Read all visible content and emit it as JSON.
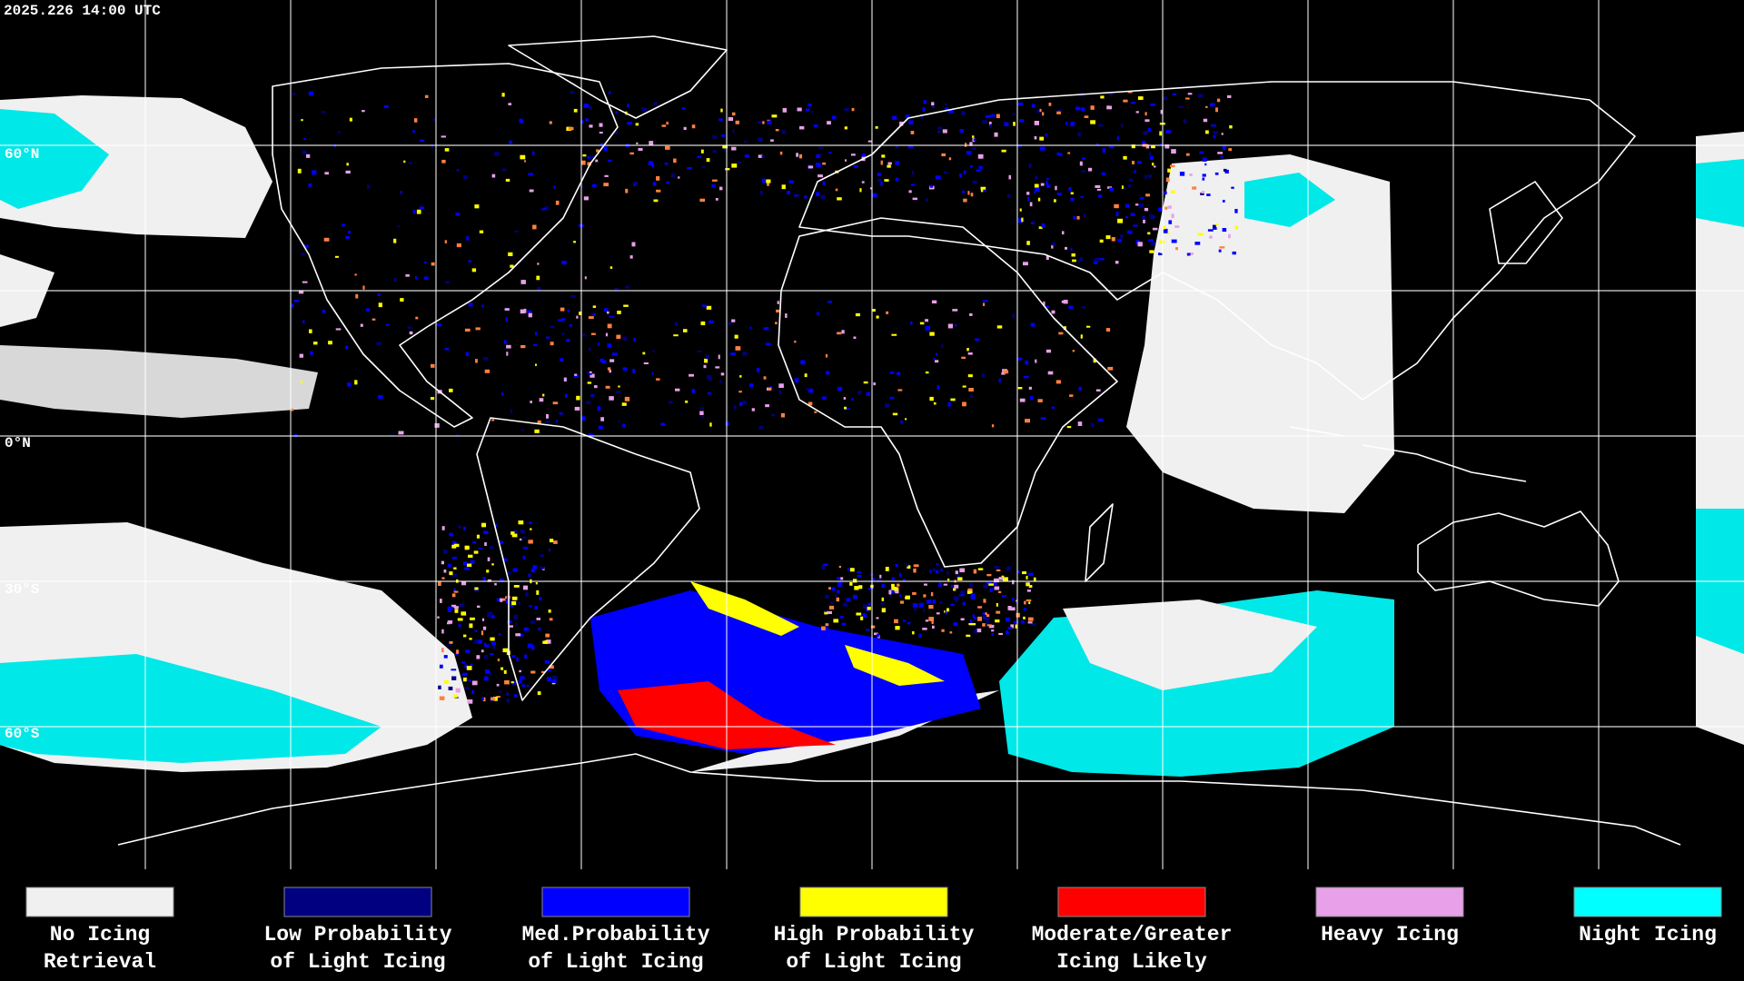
{
  "timestamp": "2025.226 14:00 UTC",
  "latitude_labels": [
    "60°N",
    "0°N",
    "30°S",
    "60°S"
  ],
  "legend": [
    {
      "lines": [
        "No Icing",
        "Retrieval"
      ],
      "color": "#f0f0f0"
    },
    {
      "lines": [
        "Low Probability",
        "of Light Icing"
      ],
      "color": "#000080"
    },
    {
      "lines": [
        "Med.Probability",
        "of Light Icing"
      ],
      "color": "#0000ff"
    },
    {
      "lines": [
        "High Probability",
        "of Light Icing"
      ],
      "color": "#ffff00"
    },
    {
      "lines": [
        "Moderate/Greater",
        "Icing Likely"
      ],
      "color": "#ff0000"
    },
    {
      "lines": [
        "Heavy Icing"
      ],
      "color": "#e8a0e8"
    },
    {
      "lines": [
        "Night Icing"
      ],
      "color": "#00ffff"
    }
  ]
}
